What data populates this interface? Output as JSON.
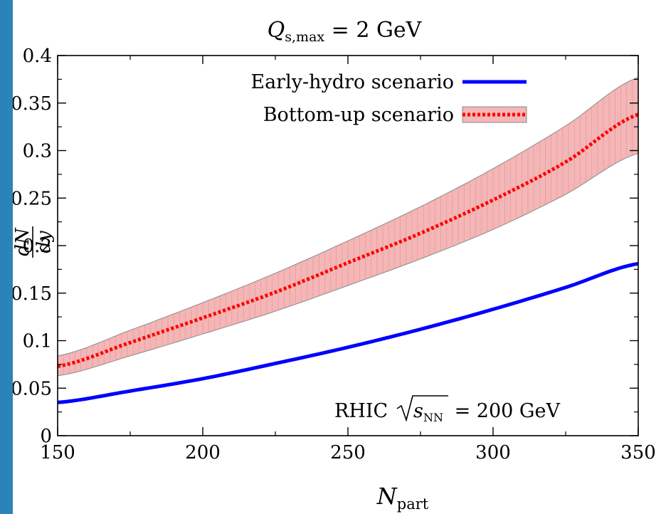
{
  "chart_data": {
    "type": "line",
    "title": {
      "main": "Q",
      "subscript": "s,max",
      "rest": " = 2 GeV"
    },
    "xlabel": {
      "main": "N",
      "subscript": "part"
    },
    "ylabel": {
      "numerator": "dN",
      "denominator": "dy"
    },
    "xlim": [
      150,
      350
    ],
    "ylim": [
      0,
      0.4
    ],
    "xticks": [
      "150",
      "200",
      "250",
      "300",
      "350"
    ],
    "yticks": [
      "0",
      "0.05",
      "0.1",
      "0.15",
      "0.2",
      "0.25",
      "0.3",
      "0.35",
      "0.4"
    ],
    "grid": false,
    "legend_position": "top-right",
    "annotation": {
      "prefix": "RHIC",
      "sqrt_body": "s",
      "sqrt_subscript": "NN",
      "suffix": " = 200 GeV"
    },
    "series": [
      {
        "name": "Early-hydro scenario",
        "color": "#0000ff",
        "style": "solid",
        "x": [
          150,
          175,
          200,
          225,
          250,
          275,
          300,
          325,
          350
        ],
        "y": [
          0.035,
          0.047,
          0.06,
          0.076,
          0.093,
          0.112,
          0.133,
          0.156,
          0.181
        ]
      },
      {
        "name": "Bottom-up scenario",
        "color": "#ff0000",
        "style": "dotted",
        "band_color": "#f4b6b6",
        "x": [
          150,
          175,
          200,
          225,
          250,
          275,
          300,
          325,
          350
        ],
        "y": [
          0.073,
          0.098,
          0.124,
          0.151,
          0.182,
          0.213,
          0.248,
          0.288,
          0.338
        ],
        "y_low": [
          0.063,
          0.084,
          0.107,
          0.131,
          0.158,
          0.186,
          0.217,
          0.254,
          0.297
        ],
        "y_high": [
          0.084,
          0.111,
          0.14,
          0.171,
          0.205,
          0.241,
          0.281,
          0.326,
          0.377
        ]
      }
    ]
  }
}
